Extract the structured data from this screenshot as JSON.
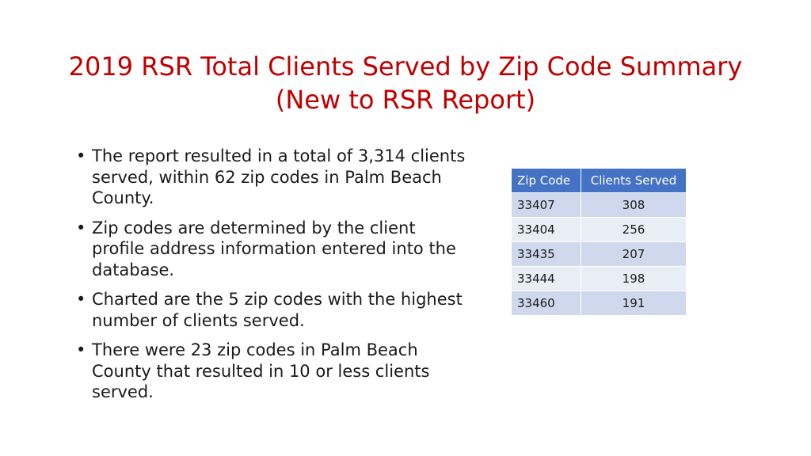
{
  "title": {
    "line1": "2019 RSR Total Clients Served by Zip Code Summary",
    "line2": "(New to RSR Report)"
  },
  "bullet_glyph": "•",
  "bullets": [
    "The report resulted in a total of 3,314 clients served, within 62 zip codes in Palm Beach County.",
    "Zip codes are determined by the client profile address information entered into the database.",
    "Charted are the 5 zip codes with the highest number of clients served.",
    "There were 23 zip codes in Palm Beach County that resulted in 10 or less clients served."
  ],
  "table": {
    "headers": [
      "Zip Code",
      "Clients Served"
    ],
    "rows": [
      [
        "33407",
        "308"
      ],
      [
        "33404",
        "256"
      ],
      [
        "33435",
        "207"
      ],
      [
        "33444",
        "198"
      ],
      [
        "33460",
        "191"
      ]
    ]
  },
  "colors": {
    "title": "#c00000",
    "header_bg": "#4472c4",
    "row_dark": "#cfd8ec",
    "row_light": "#e9edf6"
  }
}
